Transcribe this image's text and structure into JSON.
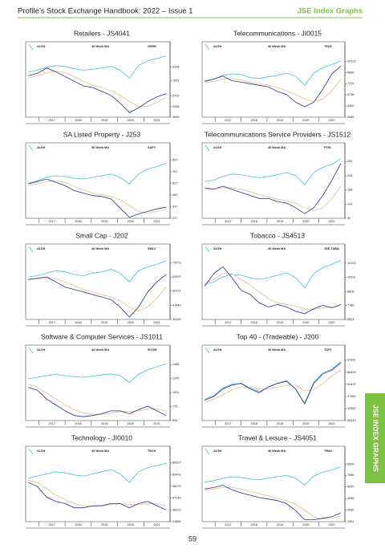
{
  "header": {
    "title": "Profile’s Stock Exchange Handbook: 2022 – Issue 1",
    "section": "JSE Index Graphs"
  },
  "side_tab": "JSE INDEX GRAPHS",
  "page_number": "59",
  "x": [
    2016.6,
    2016.95,
    2017.3,
    2017.65,
    2018.0,
    2018.35,
    2018.7,
    2019.05,
    2019.4,
    2019.75,
    2020.1,
    2020.45,
    2020.8,
    2021.15,
    2021.5,
    2021.85
  ],
  "chart_data": [
    {
      "type": "line",
      "title": "Retailers - JS4041",
      "xlim": [
        2016.5,
        2022
      ],
      "xticks": [
        2017,
        2018,
        2019,
        2020,
        2021
      ],
      "ylim": [
        3009,
        11000
      ],
      "yticks": [
        9398,
        7651,
        5703,
        4356,
        3009
      ],
      "series": [
        {
          "name": "ALSH",
          "color": "#3fc1d9",
          "values": [
            8800,
            9000,
            9400,
            9600,
            9500,
            9200,
            9000,
            9100,
            9300,
            9500,
            9000,
            8000,
            9600,
            10200,
            10500,
            10800
          ]
        },
        {
          "name": "40 Week MA",
          "color": "#e6c9a2",
          "values": [
            8000,
            8300,
            8700,
            8900,
            8700,
            8200,
            7600,
            7100,
            6800,
            6400,
            5800,
            5000,
            4400,
            4400,
            4900,
            5500
          ]
        },
        {
          "name": "GERE",
          "color": "#2e2f86",
          "values": [
            8300,
            8600,
            9300,
            8800,
            8200,
            7600,
            7000,
            6800,
            6300,
            5800,
            4800,
            3600,
            4200,
            5000,
            5600,
            6000
          ]
        }
      ]
    },
    {
      "type": "line",
      "title": "Telecommunications - JI0015",
      "xlim": [
        2016.5,
        2022
      ],
      "xticks": [
        2017,
        2018,
        2019,
        2020,
        2021
      ],
      "ylim": [
        2845,
        11000
      ],
      "yticks": [
        10121,
        8666,
        7211,
        5756,
        4300,
        2845
      ],
      "series": [
        {
          "name": "ALSH",
          "color": "#3fc1d9",
          "values": [
            7600,
            7800,
            8300,
            8500,
            8400,
            8000,
            7900,
            8100,
            8300,
            8600,
            8200,
            7000,
            8600,
            9300,
            9700,
            10200
          ]
        },
        {
          "name": "40 Week MA",
          "color": "#e6c9a2",
          "values": [
            7300,
            7500,
            7800,
            7900,
            7700,
            7400,
            7200,
            7000,
            6700,
            6300,
            5800,
            5200,
            4900,
            5200,
            6300,
            7800
          ]
        },
        {
          "name": "TELE",
          "color": "#2e2f86",
          "values": [
            7500,
            7800,
            8200,
            7600,
            7400,
            7200,
            7000,
            6800,
            6200,
            5800,
            4800,
            4200,
            4800,
            6500,
            8500,
            9500
          ]
        }
      ]
    },
    {
      "type": "line",
      "title": "SA Listed Property - J253",
      "xlim": [
        2016.5,
        2022
      ],
      "xticks": [
        2017,
        2018,
        2019,
        2020,
        2021
      ],
      "ylim": [
        207,
        960
      ],
      "yticks": [
        907,
        767,
        627,
        487,
        347,
        207
      ],
      "series": [
        {
          "name": "ALSH",
          "color": "#3fc1d9",
          "values": [
            630,
            660,
            700,
            720,
            710,
            690,
            680,
            700,
            720,
            740,
            700,
            620,
            740,
            800,
            830,
            870
          ]
        },
        {
          "name": "40 Week MA",
          "color": "#e6c9a2",
          "values": [
            600,
            620,
            650,
            660,
            640,
            590,
            550,
            510,
            490,
            470,
            430,
            360,
            290,
            270,
            290,
            320
          ]
        },
        {
          "name": "SAPY",
          "color": "#2e2f86",
          "values": [
            620,
            650,
            680,
            640,
            600,
            540,
            510,
            480,
            470,
            440,
            330,
            220,
            260,
            290,
            320,
            340
          ]
        }
      ]
    },
    {
      "type": "line",
      "title": "Telecommunications Service Providers - JS1512",
      "xlim": [
        2016.5,
        2022
      ],
      "xticks": [
        2017,
        2018,
        2019,
        2020,
        2021
      ],
      "ylim": [
        95,
        300
      ],
      "yticks": [
        281,
        234,
        188,
        141,
        95
      ],
      "series": [
        {
          "name": "ALSH",
          "color": "#3fc1d9",
          "values": [
            215,
            220,
            232,
            240,
            238,
            232,
            228,
            232,
            238,
            245,
            235,
            205,
            245,
            262,
            272,
            290
          ]
        },
        {
          "name": "40 Week MA",
          "color": "#e6c9a2",
          "values": [
            190,
            192,
            195,
            195,
            190,
            182,
            172,
            165,
            158,
            152,
            145,
            130,
            120,
            130,
            160,
            200
          ]
        },
        {
          "name": "FTEL",
          "color": "#2e2f86",
          "values": [
            195,
            190,
            200,
            190,
            180,
            170,
            160,
            160,
            150,
            145,
            130,
            110,
            130,
            170,
            220,
            275
          ]
        }
      ]
    },
    {
      "type": "line",
      "title": "Small Cap - J202",
      "xlim": [
        2016.5,
        2022
      ],
      "xticks": [
        2017,
        2018,
        2019,
        2020,
        2021
      ],
      "ylim": [
        30169,
        80000
      ],
      "yticks": [
        75273,
        63997,
        52721,
        41445,
        30169
      ],
      "series": [
        {
          "name": "ALSH",
          "color": "#3fc1d9",
          "values": [
            64000,
            65000,
            67000,
            69000,
            68000,
            66000,
            65000,
            67000,
            68000,
            70000,
            67000,
            60000,
            69000,
            72000,
            74000,
            77000
          ]
        },
        {
          "name": "40 Week MA",
          "color": "#e6c9a2",
          "values": [
            62000,
            62500,
            63000,
            62500,
            60000,
            57000,
            54000,
            52000,
            50000,
            48000,
            45000,
            40000,
            37000,
            40000,
            47000,
            56000
          ]
        },
        {
          "name": "SMLC",
          "color": "#2e2f86",
          "values": [
            62000,
            63000,
            64000,
            60000,
            56000,
            54000,
            52000,
            50000,
            48000,
            46000,
            40000,
            32000,
            40000,
            52000,
            60000,
            66000
          ]
        }
      ]
    },
    {
      "type": "line",
      "title": "Tobacco - JS4513",
      "xlim": [
        2016.5,
        2022
      ],
      "xticks": [
        2017,
        2018,
        2019,
        2020,
        2021
      ],
      "ylim": [
        5514,
        13000
      ],
      "yticks": [
        12253,
        10531,
        8808,
        7186,
        5514
      ],
      "series": [
        {
          "name": "ALSH",
          "color": "#3fc1d9",
          "values": [
            9700,
            10000,
            10600,
            10900,
            10800,
            10500,
            10300,
            10500,
            10800,
            11100,
            10500,
            9300,
            11000,
            11700,
            12100,
            12600
          ]
        },
        {
          "name": "40 Week MA",
          "color": "#e6c9a2",
          "values": [
            9800,
            10300,
            11000,
            11000,
            10300,
            9600,
            8800,
            8000,
            7500,
            7300,
            7100,
            6800,
            6700,
            6900,
            7000,
            7100
          ]
        },
        {
          "name": "JSE-TABA",
          "color": "#2e2f86",
          "values": [
            9500,
            11000,
            11800,
            10500,
            9000,
            8500,
            7500,
            7000,
            7300,
            7000,
            6500,
            6200,
            6800,
            7200,
            6900,
            7300
          ]
        }
      ]
    },
    {
      "type": "line",
      "title": "Software & Computer Services - JS1011",
      "xlim": [
        2016.5,
        2022
      ],
      "xticks": [
        2017,
        2018,
        2019,
        2020,
        2021
      ],
      "ylim": [
        534,
        1600
      ],
      "yticks": [
        1488,
        1249,
        1011,
        772,
        534
      ],
      "series": [
        {
          "name": "ALSH",
          "color": "#3fc1d9",
          "values": [
            1250,
            1270,
            1300,
            1320,
            1300,
            1280,
            1270,
            1290,
            1310,
            1330,
            1300,
            1180,
            1320,
            1400,
            1450,
            1500
          ]
        },
        {
          "name": "40 Week MA",
          "color": "#e6c9a2",
          "values": [
            1150,
            1100,
            1000,
            900,
            800,
            720,
            660,
            640,
            640,
            660,
            690,
            690,
            700,
            730,
            730,
            700
          ]
        },
        {
          "name": "SCOM",
          "color": "#2e2f86",
          "values": [
            1100,
            1050,
            900,
            800,
            700,
            620,
            600,
            620,
            650,
            700,
            700,
            650,
            720,
            780,
            700,
            620
          ]
        }
      ]
    },
    {
      "type": "line",
      "title": "Top 40 - (Tradeable) - J200",
      "xlim": [
        2016.5,
        2022
      ],
      "xticks": [
        2017,
        2018,
        2019,
        2020,
        2021
      ],
      "ylim": [
        35140,
        68500
      ],
      "yticks": [
        67331,
        60829,
        54437,
        47985,
        41562,
        35140
      ],
      "series": [
        {
          "name": "ALSH",
          "color": "#3fc1d9",
          "values": [
            46500,
            48500,
            52500,
            54500,
            55000,
            52500,
            50500,
            53000,
            55000,
            56500,
            52000,
            44500,
            55500,
            60500,
            62500,
            66500
          ]
        },
        {
          "name": "40 Week MA",
          "color": "#e6c9a2",
          "values": [
            45000,
            46500,
            49000,
            51500,
            53000,
            53000,
            52000,
            52000,
            53000,
            54000,
            54000,
            51000,
            51500,
            55000,
            59000,
            62000
          ]
        },
        {
          "name": "TOPI",
          "color": "#2e2f86",
          "values": [
            46000,
            48000,
            52000,
            54000,
            55000,
            52000,
            50000,
            53000,
            55000,
            56000,
            52000,
            44000,
            55000,
            60000,
            62000,
            66000
          ]
        }
      ]
    },
    {
      "type": "line",
      "title": "Technology - JI0010",
      "xlim": [
        2016.5,
        2022
      ],
      "xticks": [
        2017,
        2018,
        2019,
        2020,
        2021
      ],
      "ylim": [
        24896,
        84000
      ],
      "yticks": [
        80527,
        69401,
        58275,
        47149,
        36023,
        24896
      ],
      "series": [
        {
          "name": "ALSH",
          "color": "#3fc1d9",
          "values": [
            66000,
            68000,
            70000,
            72000,
            71000,
            69000,
            68000,
            70000,
            72000,
            74000,
            70000,
            62000,
            72000,
            76000,
            78000,
            80000
          ]
        },
        {
          "name": "40 Week MA",
          "color": "#e6c9a2",
          "values": [
            64000,
            62000,
            56000,
            50000,
            46000,
            42000,
            40000,
            39000,
            40000,
            41000,
            42000,
            41000,
            41000,
            42000,
            42000,
            40000
          ]
        },
        {
          "name": "TECH",
          "color": "#2e2f86",
          "values": [
            62000,
            58000,
            48000,
            44000,
            42000,
            38000,
            38000,
            40000,
            40000,
            42000,
            42000,
            38000,
            42000,
            44000,
            40000,
            36000
          ]
        }
      ]
    },
    {
      "type": "line",
      "title": "Travel & Leisure - JS4051",
      "xlim": [
        2016.5,
        2022
      ],
      "xticks": [
        2017,
        2018,
        2019,
        2020,
        2021
      ],
      "ylim": [
        1051,
        9200
      ],
      "yticks": [
        8500,
        7085,
        5570,
        4065,
        2560,
        1051
      ],
      "series": [
        {
          "name": "ALSH",
          "color": "#3fc1d9",
          "values": [
            6200,
            6400,
            6700,
            6900,
            6800,
            6600,
            6500,
            6700,
            6900,
            7100,
            6700,
            5800,
            7000,
            7500,
            7800,
            8200
          ]
        },
        {
          "name": "40 Week MA",
          "color": "#e6c9a2",
          "values": [
            5100,
            5300,
            5500,
            5500,
            5300,
            5000,
            4700,
            4400,
            4100,
            3800,
            3300,
            2500,
            1700,
            1400,
            1500,
            1800
          ]
        },
        {
          "name": "TRAV",
          "color": "#2e2f86",
          "values": [
            5300,
            5500,
            5800,
            5200,
            4800,
            4500,
            4200,
            4000,
            3800,
            3400,
            2500,
            1300,
            1300,
            1500,
            1700,
            2200
          ]
        }
      ]
    }
  ]
}
